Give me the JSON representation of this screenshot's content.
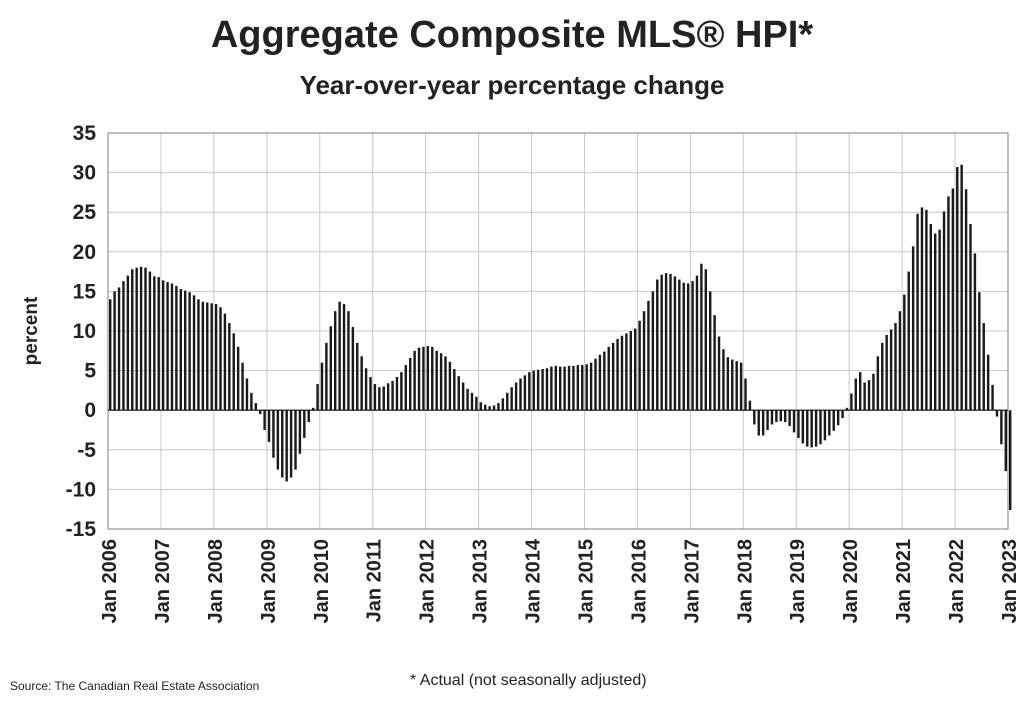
{
  "chart_data": {
    "type": "bar",
    "title": "Aggregate Composite MLS® HPI*",
    "subtitle": "Year-over-year percentage change",
    "ylabel": "percent",
    "xlabel": "",
    "ylim": [
      -15,
      35
    ],
    "yticks": [
      35,
      30,
      25,
      20,
      15,
      10,
      5,
      0,
      -5,
      -10,
      -15
    ],
    "ytick_labels": [
      "35",
      "30",
      "25",
      "20",
      "15",
      "10",
      "5",
      "0",
      "-5",
      "-10",
      "-15"
    ],
    "xtick_labels": [
      "Jan 2006",
      "Jan 2007",
      "Jan 2008",
      "Jan 2009",
      "Jan 2010",
      "Jan 2011",
      "Jan 2012",
      "Jan 2013",
      "Jan 2014",
      "Jan 2015",
      "Jan 2016",
      "Jan 2017",
      "Jan 2018",
      "Jan 2019",
      "Jan 2020",
      "Jan 2021",
      "Jan 2022",
      "Jan 2023"
    ],
    "grid": true,
    "bar_color": "#1a1a1a",
    "start": "Jan 2006",
    "frequency": "monthly",
    "values": [
      14.0,
      15.0,
      15.5,
      16.3,
      17.0,
      17.8,
      18.0,
      18.1,
      18.0,
      17.5,
      16.9,
      16.8,
      16.4,
      16.2,
      16.0,
      15.7,
      15.3,
      15.1,
      14.9,
      14.5,
      14.0,
      13.7,
      13.6,
      13.5,
      13.4,
      13.0,
      12.2,
      11.0,
      9.7,
      8.0,
      6.0,
      4.0,
      2.2,
      0.9,
      -0.5,
      -2.5,
      -4.0,
      -6.0,
      -7.5,
      -8.5,
      -9.0,
      -8.5,
      -7.5,
      -5.5,
      -3.5,
      -1.5,
      0.3,
      3.3,
      6.0,
      8.5,
      10.6,
      12.5,
      13.7,
      13.4,
      12.5,
      10.5,
      8.5,
      6.8,
      5.3,
      4.2,
      3.3,
      2.9,
      3.0,
      3.4,
      3.7,
      4.2,
      4.8,
      5.7,
      6.6,
      7.5,
      7.9,
      8.0,
      8.1,
      8.0,
      7.5,
      7.2,
      6.8,
      6.1,
      5.2,
      4.3,
      3.5,
      2.7,
      2.2,
      1.7,
      1.0,
      0.7,
      0.5,
      0.6,
      0.9,
      1.5,
      2.2,
      2.9,
      3.5,
      4.0,
      4.4,
      4.8,
      5.0,
      5.1,
      5.2,
      5.3,
      5.5,
      5.6,
      5.5,
      5.5,
      5.6,
      5.6,
      5.7,
      5.7,
      5.8,
      6.0,
      6.5,
      7.0,
      7.4,
      8.0,
      8.5,
      9.0,
      9.4,
      9.7,
      10.0,
      10.3,
      11.3,
      12.5,
      13.8,
      15.0,
      16.5,
      17.1,
      17.3,
      17.2,
      16.9,
      16.5,
      16.1,
      16.0,
      16.3,
      17.0,
      18.5,
      17.8,
      15.0,
      12.0,
      9.3,
      7.7,
      6.7,
      6.4,
      6.2,
      6.0,
      4.0,
      1.2,
      -1.8,
      -3.2,
      -3.2,
      -2.5,
      -1.8,
      -1.5,
      -1.4,
      -1.5,
      -2.0,
      -2.8,
      -3.5,
      -4.2,
      -4.6,
      -4.7,
      -4.6,
      -4.3,
      -3.8,
      -3.2,
      -2.6,
      -1.9,
      -1.0,
      0.3,
      2.1,
      4.0,
      4.8,
      3.5,
      3.8,
      4.6,
      6.8,
      8.5,
      9.5,
      10.2,
      11.0,
      12.5,
      14.6,
      17.5,
      20.7,
      24.8,
      25.6,
      25.3,
      23.5,
      22.3,
      22.8,
      25.1,
      27.0,
      28.0,
      30.7,
      31.0,
      27.9,
      23.5,
      19.8,
      14.9,
      11.0,
      7.0,
      3.2,
      -0.8,
      -4.3,
      -7.7,
      -12.6
    ]
  },
  "source_text": "Source: The Canadian Real Estate Association",
  "footnote_text": "* Actual (not seasonally adjusted)"
}
